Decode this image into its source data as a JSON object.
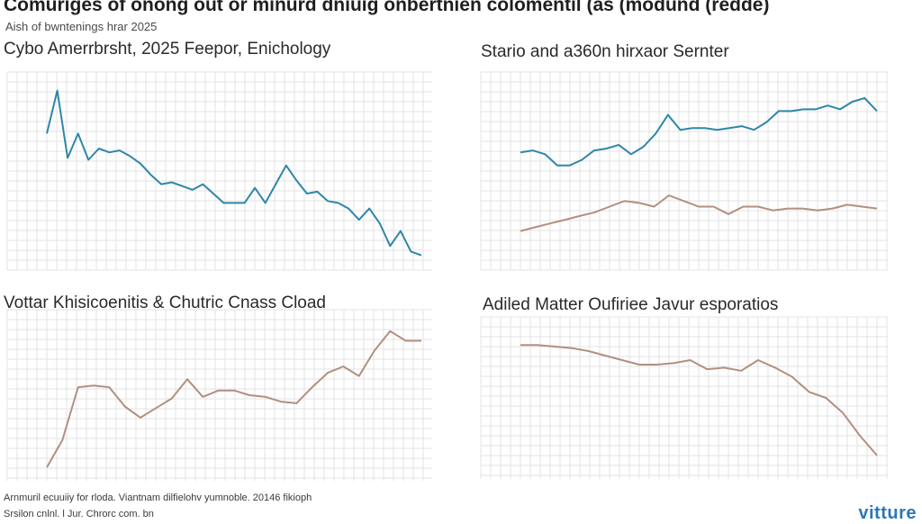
{
  "title": "Comuriges of onong out or minurd dniuig onbertnien colomentil (as (modund (redde)",
  "subtitle": "Aish of bwntenings hrar 2025",
  "colors": {
    "blue": "#2f86a8",
    "tan": "#b09080",
    "grid": "#e3e3e3"
  },
  "chart_data": [
    {
      "type": "line",
      "title": "Cybo Amerrbrsht, 2025 Feepor, Enichology",
      "series": [
        {
          "name": "blue",
          "color": "#2f86a8",
          "values": [
            0.7,
            0.93,
            0.57,
            0.7,
            0.56,
            0.62,
            0.6,
            0.61,
            0.58,
            0.54,
            0.48,
            0.43,
            0.44,
            0.42,
            0.4,
            0.43,
            0.38,
            0.33,
            0.33,
            0.33,
            0.41,
            0.33,
            0.43,
            0.53,
            0.45,
            0.38,
            0.39,
            0.34,
            0.33,
            0.3,
            0.24,
            0.3,
            0.22,
            0.1,
            0.18,
            0.07,
            0.05
          ]
        }
      ]
    },
    {
      "type": "line",
      "title": "Stario and a360n hirxaor Sernter",
      "series": [
        {
          "name": "blue",
          "color": "#2f86a8",
          "values": [
            0.6,
            0.61,
            0.59,
            0.53,
            0.53,
            0.56,
            0.61,
            0.62,
            0.64,
            0.59,
            0.63,
            0.7,
            0.8,
            0.72,
            0.73,
            0.73,
            0.72,
            0.73,
            0.74,
            0.72,
            0.76,
            0.82,
            0.82,
            0.83,
            0.83,
            0.85,
            0.83,
            0.87,
            0.89,
            0.82
          ]
        },
        {
          "name": "tan",
          "color": "#b09080",
          "values": [
            0.18,
            0.2,
            0.22,
            0.24,
            0.26,
            0.28,
            0.31,
            0.34,
            0.33,
            0.31,
            0.37,
            0.34,
            0.31,
            0.31,
            0.27,
            0.31,
            0.31,
            0.29,
            0.3,
            0.3,
            0.29,
            0.3,
            0.32,
            0.31,
            0.3
          ]
        }
      ]
    },
    {
      "type": "line",
      "title": "Vottar Khisicoenitis & Chutric Cnass Cload",
      "series": [
        {
          "name": "tan",
          "color": "#b09080",
          "values": [
            0.05,
            0.22,
            0.55,
            0.56,
            0.55,
            0.43,
            0.36,
            0.42,
            0.48,
            0.6,
            0.49,
            0.53,
            0.53,
            0.5,
            0.49,
            0.46,
            0.45,
            0.55,
            0.64,
            0.68,
            0.62,
            0.78,
            0.9,
            0.84,
            0.84
          ]
        }
      ]
    },
    {
      "type": "line",
      "title": "Adiled Matter Oufiriee Javur esporatios",
      "series": [
        {
          "name": "tan",
          "color": "#b09080",
          "values": [
            0.85,
            0.85,
            0.84,
            0.83,
            0.81,
            0.78,
            0.75,
            0.72,
            0.72,
            0.73,
            0.75,
            0.69,
            0.7,
            0.68,
            0.75,
            0.7,
            0.64,
            0.54,
            0.5,
            0.4,
            0.25,
            0.12
          ]
        }
      ]
    }
  ],
  "footer": {
    "line1": "Arnmuril ecuuiiy for rloda. Viantnam dilfielohv yumnoble. 20146 fikioph",
    "line2": "Srsilon cnlnl. l Jur. Chrorc com. bn"
  },
  "logo": "vitture"
}
